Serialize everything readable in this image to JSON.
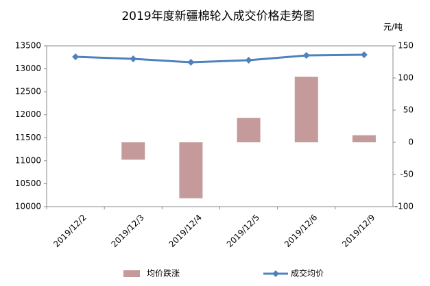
{
  "chart_data": {
    "type": "bar_line",
    "title": "2019年度新疆棉轮入成交价格走势图",
    "y2_label": "元/吨",
    "categories": [
      "2019/12/2",
      "2019/12/3",
      "2019/12/4",
      "2019/12/5",
      "2019/12/6",
      "2019/12/9"
    ],
    "series": [
      {
        "name": "均价跌涨",
        "type": "bar",
        "axis": "y2",
        "color": "#c49a9a",
        "values": [
          null,
          -27,
          -87,
          38,
          102,
          11
        ]
      },
      {
        "name": "成交均价",
        "type": "line",
        "color": "#4f81bd",
        "values": [
          13262,
          13217,
          13142,
          13187,
          13291,
          13306
        ]
      }
    ],
    "ylim": [
      10000,
      13500
    ],
    "yticks": [
      10000,
      10500,
      11000,
      11500,
      12000,
      12500,
      13000,
      13500
    ],
    "y2lim": [
      -100,
      150
    ],
    "y2ticks": [
      -100,
      -50,
      0,
      50,
      100,
      150
    ]
  }
}
